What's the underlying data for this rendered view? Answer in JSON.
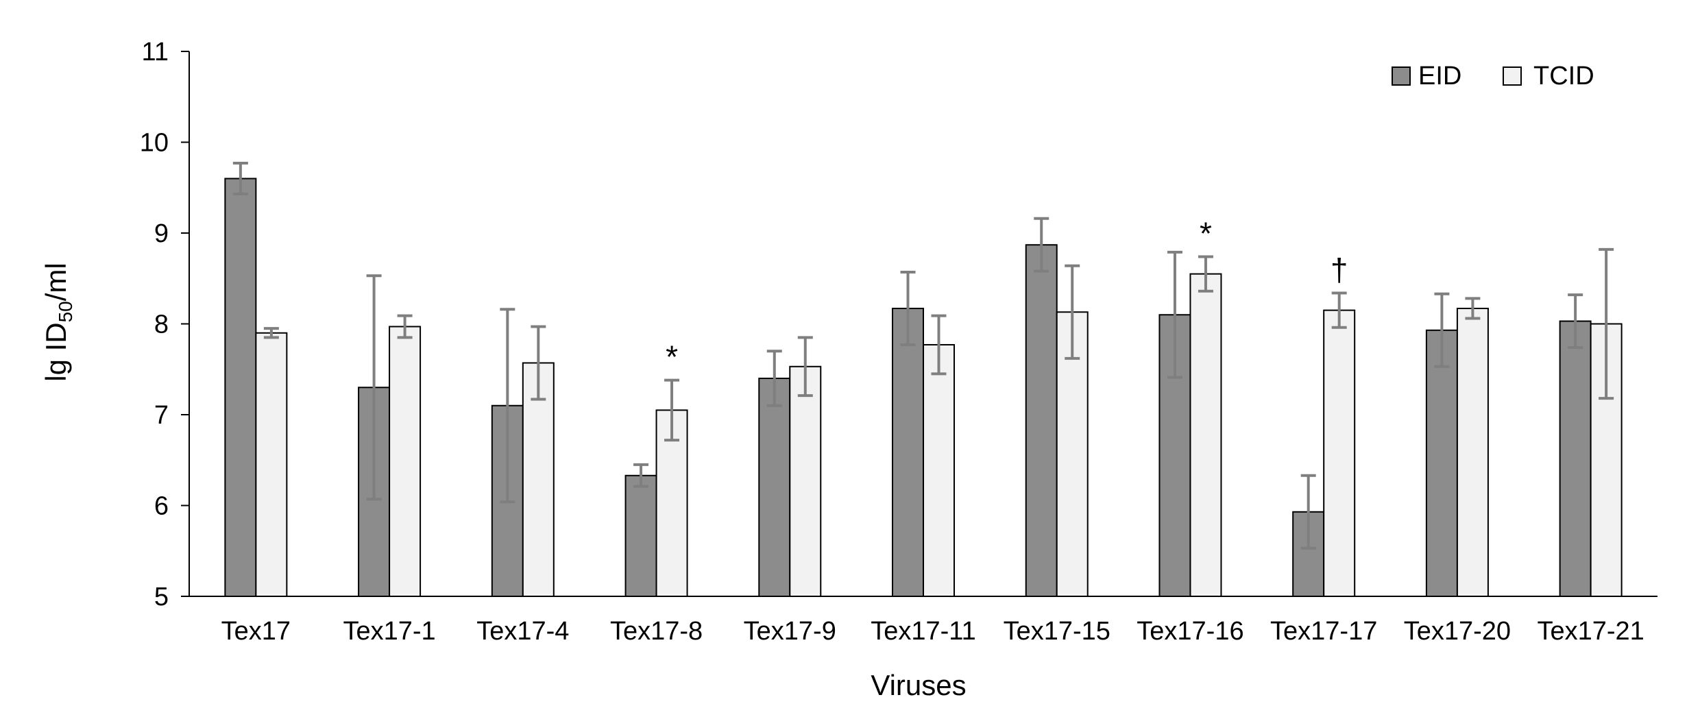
{
  "chart_data": {
    "type": "bar",
    "xlabel": "Viruses",
    "ylabel": {
      "prefix": "lg ID",
      "subscript": "50",
      "suffix": "/ml"
    },
    "ylim": [
      5,
      11
    ],
    "yticks": [
      "5",
      "6",
      "7",
      "8",
      "9",
      "10",
      "11"
    ],
    "grid": false,
    "legend_position": "top-right",
    "categories": [
      "Tex17",
      "Tex17-1",
      "Tex17-4",
      "Tex17-8",
      "Tex17-9",
      "Tex17-11",
      "Tex17-15",
      "Tex17-16",
      "Tex17-17",
      "Tex17-20",
      "Tex17-21"
    ],
    "series": [
      {
        "name": "EID",
        "color": "#8c8c8c",
        "values": [
          9.6,
          7.3,
          7.1,
          6.33,
          7.4,
          8.17,
          8.87,
          8.1,
          5.93,
          7.93,
          8.03
        ],
        "errors": [
          0.17,
          1.23,
          1.06,
          0.12,
          0.3,
          0.4,
          0.29,
          0.69,
          0.4,
          0.4,
          0.29
        ]
      },
      {
        "name": "TCID",
        "color": "#f2f2f2",
        "values": [
          7.9,
          7.97,
          7.57,
          7.05,
          7.53,
          7.77,
          8.13,
          8.55,
          8.15,
          8.17,
          8.0
        ],
        "errors": [
          0.05,
          0.12,
          0.4,
          0.33,
          0.32,
          0.32,
          0.51,
          0.19,
          0.19,
          0.11,
          0.82
        ]
      }
    ],
    "annotations": [
      {
        "category": "Tex17-8",
        "series": "TCID",
        "text": "*"
      },
      {
        "category": "Tex17-16",
        "series": "TCID",
        "text": "*"
      },
      {
        "category": "Tex17-17",
        "series": "TCID",
        "text": "†"
      }
    ],
    "error_bar_color": "#7f7f7f"
  }
}
